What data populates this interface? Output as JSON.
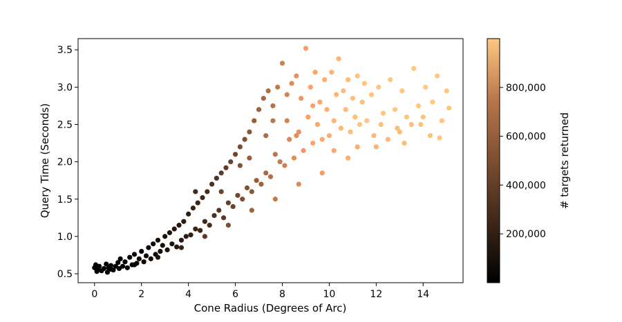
{
  "chart_data": {
    "type": "scatter",
    "title": "",
    "xlabel": "Cone Radius (Degrees of Arc)",
    "ylabel": "Query Time (Seconds)",
    "xlim": [
      -0.7,
      15.7
    ],
    "ylim": [
      0.38,
      3.65
    ],
    "xticks": [
      0,
      2,
      4,
      6,
      8,
      10,
      12,
      14
    ],
    "xtick_labels": [
      "0",
      "2",
      "4",
      "6",
      "8",
      "10",
      "12",
      "14"
    ],
    "yticks": [
      0.5,
      1.0,
      1.5,
      2.0,
      2.5,
      3.0,
      3.5
    ],
    "ytick_labels": [
      "0.5",
      "1.0",
      "1.5",
      "2.0",
      "2.5",
      "3.0",
      "3.5"
    ],
    "grid": false,
    "legend": "none",
    "colorbar": {
      "label": "# targets returned",
      "colormap": "copper",
      "range": [
        0,
        1000000
      ],
      "ticks": [
        200000,
        400000,
        600000,
        800000
      ],
      "tick_labels": [
        "200,000",
        "400,000",
        "600,000",
        "800,000"
      ],
      "color_low": "#000000",
      "color_high": "#ffc77f"
    },
    "marker_size_note": "filled circles",
    "points": [
      [
        0.0,
        0.58,
        0
      ],
      [
        0.05,
        0.62,
        0
      ],
      [
        0.1,
        0.53,
        0
      ],
      [
        0.15,
        0.56,
        1000
      ],
      [
        0.2,
        0.6,
        1500
      ],
      [
        0.3,
        0.54,
        2000
      ],
      [
        0.4,
        0.57,
        2500
      ],
      [
        0.5,
        0.63,
        3000
      ],
      [
        0.55,
        0.52,
        3500
      ],
      [
        0.6,
        0.58,
        4000
      ],
      [
        0.7,
        0.61,
        5000
      ],
      [
        0.8,
        0.55,
        6000
      ],
      [
        0.9,
        0.6,
        7000
      ],
      [
        1.0,
        0.65,
        8000
      ],
      [
        1.05,
        0.57,
        9000
      ],
      [
        1.1,
        0.7,
        10000
      ],
      [
        1.2,
        0.6,
        12000
      ],
      [
        1.3,
        0.66,
        14000
      ],
      [
        1.4,
        0.58,
        15000
      ],
      [
        1.5,
        0.72,
        18000
      ],
      [
        1.6,
        0.62,
        20000
      ],
      [
        1.7,
        0.76,
        24000
      ],
      [
        1.8,
        0.64,
        26000
      ],
      [
        1.9,
        0.7,
        30000
      ],
      [
        2.0,
        0.8,
        34000
      ],
      [
        2.1,
        0.66,
        37000
      ],
      [
        2.2,
        0.74,
        40000
      ],
      [
        2.3,
        0.85,
        45000
      ],
      [
        2.4,
        0.7,
        48000
      ],
      [
        2.5,
        0.9,
        55000
      ],
      [
        2.6,
        0.76,
        58000
      ],
      [
        2.7,
        0.95,
        65000
      ],
      [
        2.8,
        0.8,
        68000
      ],
      [
        2.9,
        0.88,
        72000
      ],
      [
        3.0,
        1.0,
        80000
      ],
      [
        3.1,
        0.82,
        85000
      ],
      [
        3.2,
        1.05,
        95000
      ],
      [
        3.3,
        0.9,
        98000
      ],
      [
        3.4,
        1.1,
        105000
      ],
      [
        3.5,
        0.86,
        108000
      ],
      [
        3.6,
        1.15,
        120000
      ],
      [
        3.7,
        0.95,
        125000
      ],
      [
        3.8,
        1.2,
        135000
      ],
      [
        3.9,
        1.0,
        140000
      ],
      [
        4.0,
        1.3,
        150000
      ],
      [
        4.1,
        1.02,
        155000
      ],
      [
        4.2,
        1.38,
        165000
      ],
      [
        4.3,
        1.1,
        170000
      ],
      [
        4.4,
        1.45,
        180000
      ],
      [
        4.5,
        1.08,
        185000
      ],
      [
        4.6,
        1.52,
        200000
      ],
      [
        4.7,
        1.2,
        205000
      ],
      [
        4.8,
        1.6,
        220000
      ],
      [
        4.9,
        1.15,
        225000
      ],
      [
        5.0,
        1.7,
        240000
      ],
      [
        5.1,
        1.28,
        245000
      ],
      [
        5.2,
        1.78,
        260000
      ],
      [
        5.3,
        1.35,
        270000
      ],
      [
        5.4,
        1.85,
        285000
      ],
      [
        5.5,
        1.25,
        290000
      ],
      [
        5.6,
        1.92,
        305000
      ],
      [
        5.7,
        1.45,
        315000
      ],
      [
        5.8,
        2.0,
        330000
      ],
      [
        5.9,
        1.4,
        335000
      ],
      [
        6.0,
        2.1,
        350000
      ],
      [
        6.1,
        1.55,
        360000
      ],
      [
        6.2,
        2.2,
        380000
      ],
      [
        6.3,
        1.5,
        385000
      ],
      [
        6.4,
        2.3,
        400000
      ],
      [
        6.5,
        1.65,
        410000
      ],
      [
        6.6,
        2.4,
        430000
      ],
      [
        6.7,
        1.6,
        435000
      ],
      [
        6.8,
        2.55,
        460000
      ],
      [
        6.9,
        1.75,
        470000
      ],
      [
        7.0,
        2.7,
        490000
      ],
      [
        7.1,
        1.7,
        495000
      ],
      [
        7.2,
        2.85,
        520000
      ],
      [
        7.3,
        1.85,
        530000
      ],
      [
        7.4,
        2.95,
        555000
      ],
      [
        7.5,
        1.8,
        560000
      ],
      [
        7.6,
        2.75,
        570000
      ],
      [
        7.7,
        2.1,
        585000
      ],
      [
        7.8,
        3.0,
        610000
      ],
      [
        7.9,
        2.0,
        615000
      ],
      [
        8.0,
        3.32,
        650000
      ],
      [
        8.1,
        1.95,
        655000
      ],
      [
        8.2,
        2.9,
        665000
      ],
      [
        8.3,
        2.3,
        680000
      ],
      [
        8.4,
        3.05,
        700000
      ],
      [
        8.5,
        2.05,
        705000
      ],
      [
        8.6,
        3.15,
        725000
      ],
      [
        8.7,
        2.4,
        735000
      ],
      [
        8.8,
        2.85,
        745000
      ],
      [
        8.9,
        2.15,
        755000
      ],
      [
        9.0,
        3.52,
        780000
      ],
      [
        9.1,
        2.6,
        790000
      ],
      [
        9.2,
        3.0,
        800000
      ],
      [
        9.3,
        2.25,
        805000
      ],
      [
        9.4,
        3.2,
        820000
      ],
      [
        9.5,
        2.5,
        830000
      ],
      [
        9.6,
        2.8,
        840000
      ],
      [
        9.7,
        2.3,
        845000
      ],
      [
        9.8,
        3.1,
        860000
      ],
      [
        9.9,
        2.7,
        870000
      ],
      [
        10.0,
        2.35,
        875000
      ],
      [
        10.1,
        3.2,
        890000
      ],
      [
        10.2,
        2.55,
        895000
      ],
      [
        10.3,
        2.9,
        905000
      ],
      [
        10.4,
        3.38,
        915000
      ],
      [
        10.5,
        2.45,
        920000
      ],
      [
        10.6,
        2.95,
        930000
      ],
      [
        10.7,
        2.7,
        935000
      ],
      [
        10.8,
        3.1,
        945000
      ],
      [
        10.9,
        2.4,
        950000
      ],
      [
        11.0,
        2.85,
        958000
      ],
      [
        11.1,
        2.6,
        962000
      ],
      [
        11.2,
        3.15,
        968000
      ],
      [
        11.3,
        2.5,
        972000
      ],
      [
        11.4,
        2.8,
        976000
      ],
      [
        11.5,
        3.05,
        980000
      ],
      [
        11.6,
        2.55,
        982000
      ],
      [
        11.8,
        2.9,
        985000
      ],
      [
        12.0,
        2.2,
        900000
      ],
      [
        12.1,
        3.0,
        988000
      ],
      [
        12.3,
        2.65,
        990000
      ],
      [
        12.5,
        2.3,
        920000
      ],
      [
        12.6,
        3.1,
        992000
      ],
      [
        12.8,
        2.7,
        993000
      ],
      [
        13.0,
        2.4,
        940000
      ],
      [
        13.1,
        2.95,
        994000
      ],
      [
        13.3,
        2.6,
        995000
      ],
      [
        13.5,
        2.5,
        960000
      ],
      [
        13.6,
        3.25,
        996000
      ],
      [
        13.8,
        2.75,
        996500
      ],
      [
        14.0,
        2.6,
        970000
      ],
      [
        14.1,
        3.0,
        997000
      ],
      [
        14.3,
        2.35,
        975000
      ],
      [
        14.4,
        2.8,
        997500
      ],
      [
        14.6,
        3.15,
        998000
      ],
      [
        14.8,
        2.55,
        985000
      ],
      [
        15.0,
        2.95,
        999000
      ],
      [
        15.1,
        2.72,
        990000
      ],
      [
        14.7,
        2.32,
        980000
      ],
      [
        13.9,
        2.5,
        965000
      ],
      [
        12.9,
        2.45,
        945000
      ],
      [
        11.9,
        2.35,
        925000
      ],
      [
        10.8,
        2.05,
        860000
      ],
      [
        9.7,
        1.85,
        780000
      ],
      [
        8.7,
        1.7,
        700000
      ],
      [
        7.7,
        1.5,
        600000
      ],
      [
        6.7,
        1.35,
        500000
      ],
      [
        5.7,
        1.15,
        390000
      ],
      [
        4.7,
        1.0,
        280000
      ],
      [
        3.7,
        0.85,
        180000
      ],
      [
        2.7,
        0.72,
        100000
      ],
      [
        1.7,
        0.62,
        40000
      ],
      [
        0.7,
        0.56,
        8000
      ],
      [
        6.2,
        1.95,
        410000
      ],
      [
        7.3,
        2.35,
        545000
      ],
      [
        8.2,
        2.55,
        660000
      ],
      [
        9.3,
        2.75,
        795000
      ],
      [
        10.2,
        2.15,
        840000
      ],
      [
        11.2,
        2.2,
        870000
      ],
      [
        12.2,
        2.5,
        955000
      ],
      [
        13.2,
        2.25,
        935000
      ],
      [
        4.3,
        1.6,
        210000
      ],
      [
        5.4,
        1.6,
        330000
      ],
      [
        6.6,
        2.05,
        470000
      ],
      [
        7.6,
        2.55,
        590000
      ],
      [
        8.6,
        2.35,
        715000
      ]
    ]
  }
}
